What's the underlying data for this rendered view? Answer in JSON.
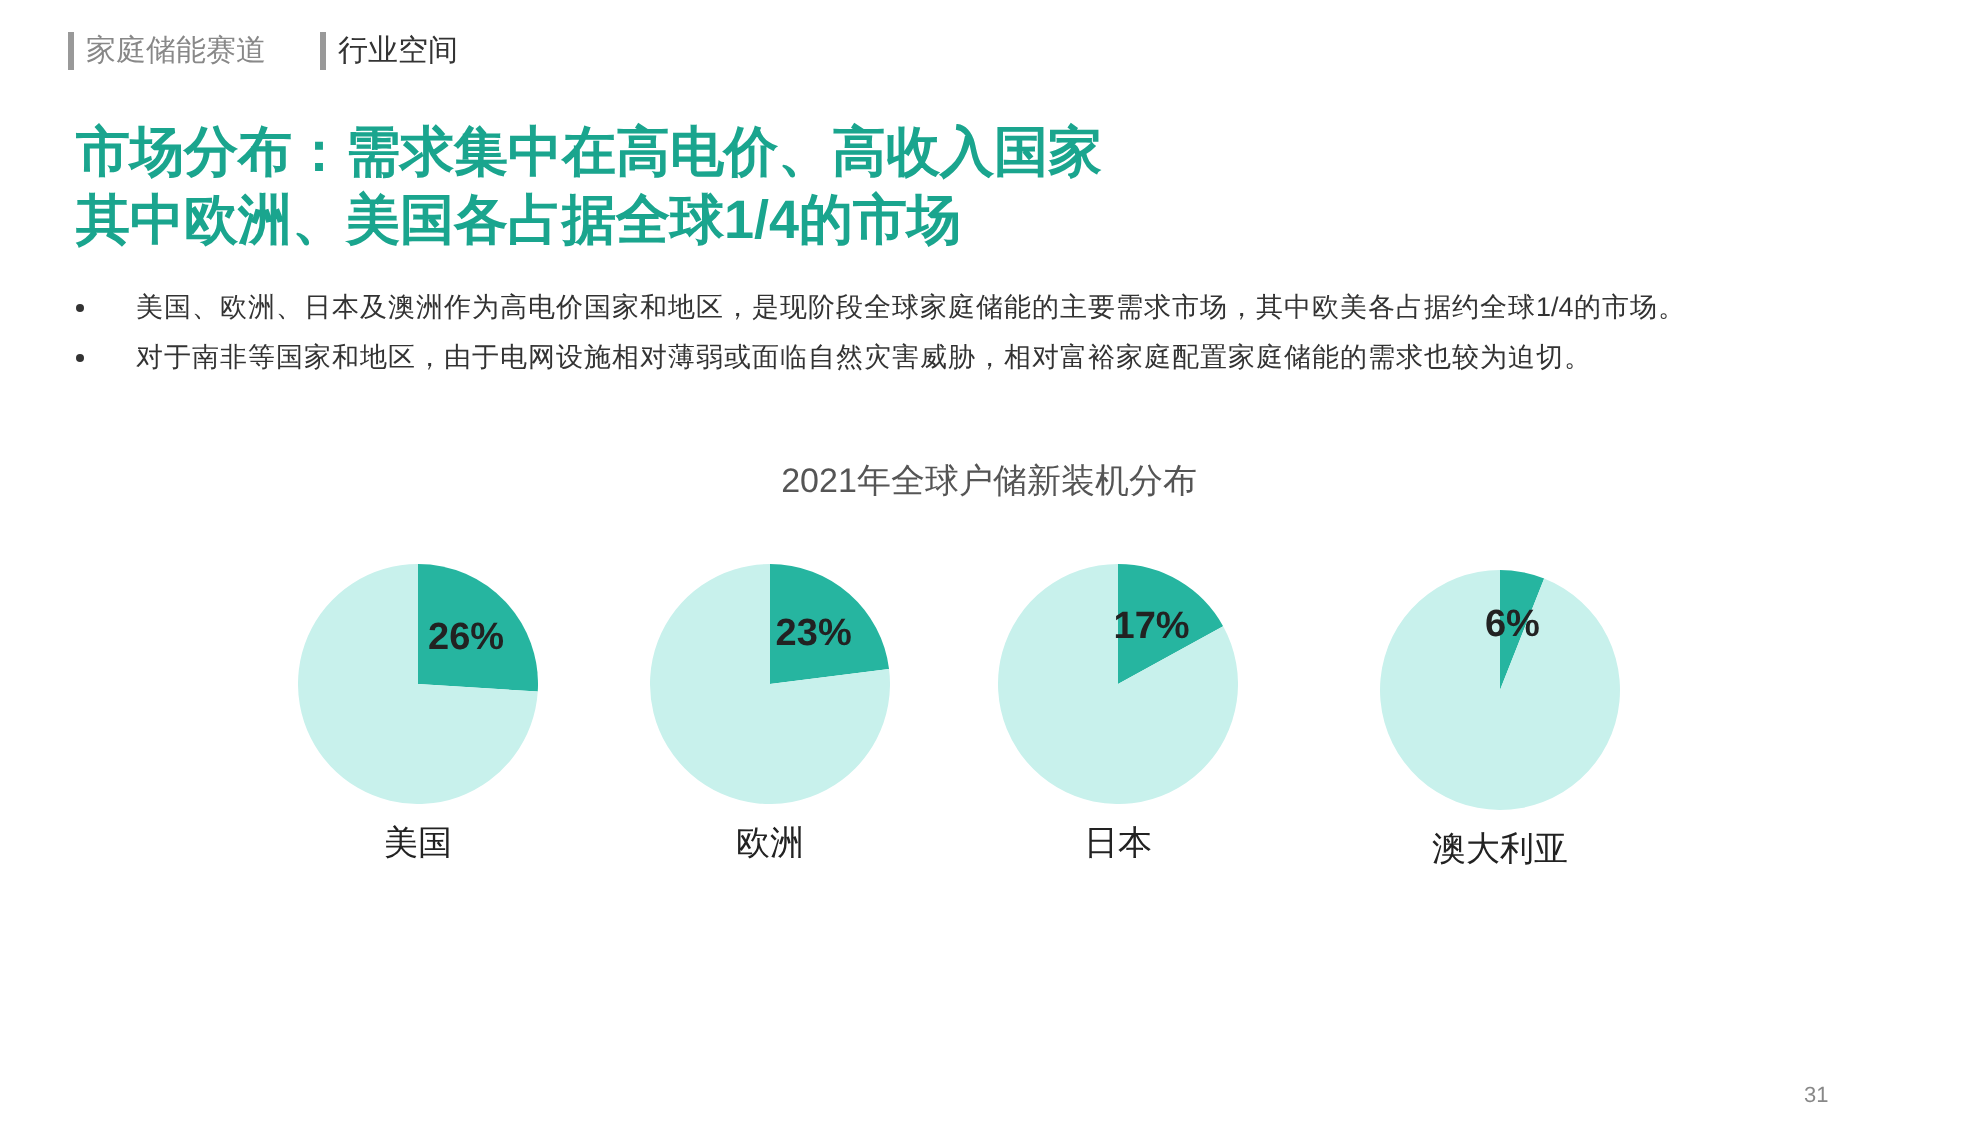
{
  "chart_data": [
    {
      "type": "other",
      "title": "市场分布：需求集中在高电价、高收入国家",
      "subtitle": "其中欧洲、美国各占据全球1/4的市场",
      "annotations": [
        "家庭储能赛道",
        "行业空间",
        "美国、欧洲、日本及澳洲作为高电价国家和地区，是现阶段全球家庭储能的主要需求市场，其中欧美各占据约全球1/4的市场。",
        "对于南非等国家和地区，由于电网设施相对薄弱或面临自然灾害威胁，相对富裕家庭配置家庭储能的需求也较为迫切。",
        "2021年全球户储新装机分布",
        "31"
      ]
    },
    {
      "type": "pie",
      "xlabel": "美国",
      "categories": [
        null,
        null
      ],
      "values": [
        26,
        74
      ],
      "colors": [
        "#26b5a0",
        "#c8f1ec"
      ],
      "value_labels": [
        "26%",
        null
      ]
    },
    {
      "type": "pie",
      "xlabel": "欧洲",
      "categories": [
        null,
        null
      ],
      "values": [
        23,
        77
      ],
      "colors": [
        "#26b5a0",
        "#c8f1ec"
      ],
      "value_labels": [
        "23%",
        null
      ]
    },
    {
      "type": "pie",
      "xlabel": "日本",
      "categories": [
        null,
        null
      ],
      "values": [
        17,
        83
      ],
      "colors": [
        "#26b5a0",
        "#c8f1ec"
      ],
      "value_labels": [
        "17%",
        null
      ]
    },
    {
      "type": "pie",
      "xlabel": "澳大利亚",
      "categories": [
        null,
        null
      ],
      "values": [
        6,
        94
      ],
      "colors": [
        "#26b5a0",
        "#c8f1ec"
      ],
      "value_labels": [
        "6%",
        null
      ]
    }
  ]
}
